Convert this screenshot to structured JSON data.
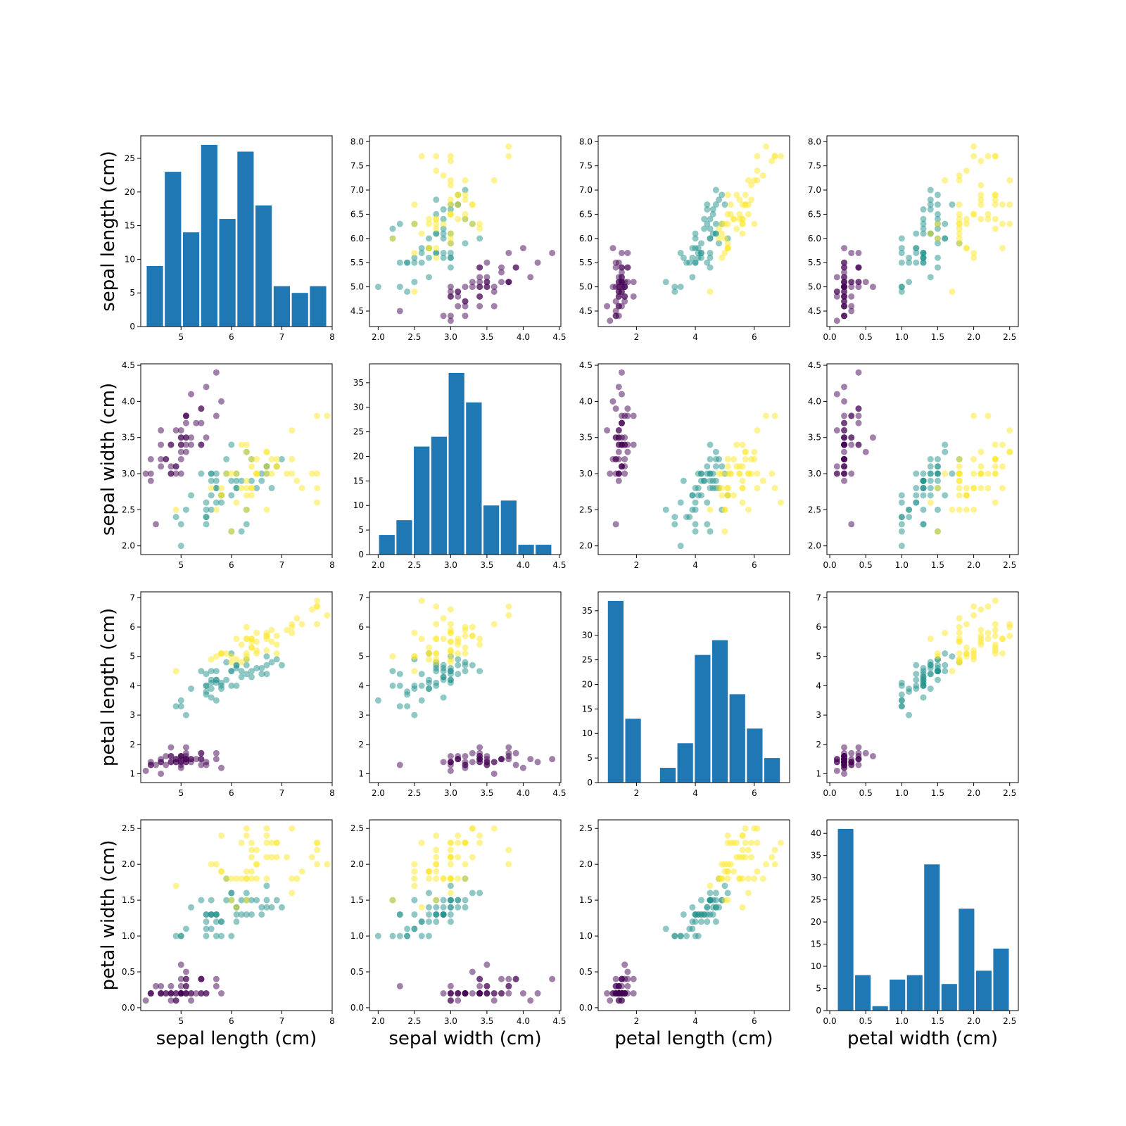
{
  "features": [
    "sepal length (cm)",
    "sepal width (cm)",
    "petal length (cm)",
    "petal width (cm)"
  ],
  "class_colors": [
    "#440154",
    "#21918c",
    "#fde725"
  ],
  "chart_data": {
    "type": "scatter",
    "grid": false,
    "axes": [
      {
        "xlim": [
          4.2,
          8.0
        ],
        "xticks": [
          5,
          6,
          7,
          8
        ]
      },
      {
        "xlim": [
          1.88,
          4.52
        ],
        "xticks": [
          2.0,
          2.5,
          3.0,
          3.5,
          4.0,
          4.5
        ]
      },
      {
        "xlim": [
          0.7,
          7.2
        ],
        "xticks": [
          2,
          4,
          6
        ]
      },
      {
        "xlim": [
          -0.04,
          2.62
        ],
        "xticks": [
          0.0,
          0.5,
          1.0,
          1.5,
          2.0,
          2.5
        ]
      }
    ],
    "scatter_ylims": [
      [
        4.18,
        8.12
      ],
      [
        1.88,
        4.52
      ],
      [
        0.7,
        7.2
      ],
      [
        -0.04,
        2.62
      ]
    ],
    "scatter_yticks": [
      [
        4.5,
        5.0,
        5.5,
        6.0,
        6.5,
        7.0,
        7.5,
        8.0
      ],
      [
        2.0,
        2.5,
        3.0,
        3.5,
        4.0,
        4.5
      ],
      [
        1,
        2,
        3,
        4,
        5,
        6,
        7
      ],
      [
        0.0,
        0.5,
        1.0,
        1.5,
        2.0,
        2.5
      ]
    ],
    "histograms": [
      {
        "bin_min": 4.3,
        "bin_max": 7.9,
        "counts": [
          9,
          23,
          14,
          27,
          16,
          26,
          18,
          6,
          5,
          6
        ],
        "ylim": [
          0,
          28.35
        ],
        "yticks": [
          0,
          5,
          10,
          15,
          20,
          25
        ]
      },
      {
        "bin_min": 2.0,
        "bin_max": 4.4,
        "counts": [
          4,
          7,
          22,
          24,
          37,
          31,
          10,
          11,
          2,
          2
        ],
        "ylim": [
          0,
          38.85
        ],
        "yticks": [
          0,
          5,
          10,
          15,
          20,
          25,
          30,
          35
        ]
      },
      {
        "bin_min": 1.0,
        "bin_max": 6.9,
        "counts": [
          37,
          13,
          0,
          3,
          8,
          26,
          29,
          18,
          11,
          5
        ],
        "ylim": [
          0,
          38.85
        ],
        "yticks": [
          0,
          5,
          10,
          15,
          20,
          25,
          30,
          35
        ]
      },
      {
        "bin_min": 0.1,
        "bin_max": 2.5,
        "counts": [
          41,
          8,
          1,
          7,
          8,
          33,
          6,
          23,
          9,
          14
        ],
        "ylim": [
          0,
          43.05
        ],
        "yticks": [
          0,
          5,
          10,
          15,
          20,
          25,
          30,
          35,
          40
        ]
      }
    ],
    "class": [
      0,
      0,
      0,
      0,
      0,
      0,
      0,
      0,
      0,
      0,
      0,
      0,
      0,
      0,
      0,
      0,
      0,
      0,
      0,
      0,
      0,
      0,
      0,
      0,
      0,
      0,
      0,
      0,
      0,
      0,
      0,
      0,
      0,
      0,
      0,
      0,
      0,
      0,
      0,
      0,
      0,
      0,
      0,
      0,
      0,
      0,
      0,
      0,
      0,
      0,
      1,
      1,
      1,
      1,
      1,
      1,
      1,
      1,
      1,
      1,
      1,
      1,
      1,
      1,
      1,
      1,
      1,
      1,
      1,
      1,
      1,
      1,
      1,
      1,
      1,
      1,
      1,
      1,
      1,
      1,
      1,
      1,
      1,
      1,
      1,
      1,
      1,
      1,
      1,
      1,
      1,
      1,
      1,
      1,
      1,
      1,
      1,
      1,
      1,
      1,
      2,
      2,
      2,
      2,
      2,
      2,
      2,
      2,
      2,
      2,
      2,
      2,
      2,
      2,
      2,
      2,
      2,
      2,
      2,
      2,
      2,
      2,
      2,
      2,
      2,
      2,
      2,
      2,
      2,
      2,
      2,
      2,
      2,
      2,
      2,
      2,
      2,
      2,
      2,
      2,
      2,
      2,
      2,
      2,
      2,
      2,
      2,
      2,
      2,
      2
    ],
    "sepal_length": [
      5.1,
      4.9,
      4.7,
      4.6,
      5.0,
      5.4,
      4.6,
      5.0,
      4.4,
      4.9,
      5.4,
      4.8,
      4.8,
      4.3,
      5.8,
      5.7,
      5.4,
      5.1,
      5.7,
      5.1,
      5.4,
      5.1,
      4.6,
      5.1,
      4.8,
      5.0,
      5.0,
      5.2,
      5.2,
      4.7,
      4.8,
      5.4,
      5.2,
      5.5,
      4.9,
      5.0,
      5.5,
      4.9,
      4.4,
      5.1,
      5.0,
      4.5,
      4.4,
      5.0,
      5.1,
      4.8,
      5.1,
      4.6,
      5.3,
      5.0,
      7.0,
      6.4,
      6.9,
      5.5,
      6.5,
      5.7,
      6.3,
      4.9,
      6.6,
      5.2,
      5.0,
      5.9,
      6.0,
      6.1,
      5.6,
      6.7,
      5.6,
      5.8,
      6.2,
      5.6,
      5.9,
      6.1,
      6.3,
      6.1,
      6.4,
      6.6,
      6.8,
      6.7,
      6.0,
      5.7,
      5.5,
      5.5,
      5.8,
      6.0,
      5.4,
      6.0,
      6.7,
      6.3,
      5.6,
      5.5,
      5.5,
      6.1,
      5.8,
      5.0,
      5.6,
      5.7,
      5.7,
      6.2,
      5.1,
      5.7,
      6.3,
      5.8,
      7.1,
      6.3,
      6.5,
      7.6,
      4.9,
      7.3,
      6.7,
      7.2,
      6.5,
      6.4,
      6.8,
      5.7,
      5.8,
      6.4,
      6.5,
      7.7,
      7.7,
      6.0,
      6.9,
      5.6,
      7.7,
      6.3,
      6.7,
      7.2,
      6.2,
      6.1,
      6.4,
      7.2,
      7.4,
      7.9,
      6.4,
      6.3,
      6.1,
      7.7,
      6.3,
      6.4,
      6.0,
      6.9,
      6.7,
      6.9,
      5.8,
      6.8,
      6.7,
      6.7,
      6.3,
      6.5,
      6.2,
      5.9
    ],
    "sepal_width": [
      3.5,
      3.0,
      3.2,
      3.1,
      3.6,
      3.9,
      3.4,
      3.4,
      2.9,
      3.1,
      3.7,
      3.4,
      3.0,
      3.0,
      4.0,
      4.4,
      3.9,
      3.5,
      3.8,
      3.8,
      3.4,
      3.7,
      3.6,
      3.3,
      3.4,
      3.0,
      3.4,
      3.5,
      3.4,
      3.2,
      3.1,
      3.4,
      4.1,
      4.2,
      3.1,
      3.2,
      3.5,
      3.6,
      3.0,
      3.4,
      3.5,
      2.3,
      3.2,
      3.5,
      3.8,
      3.0,
      3.8,
      3.2,
      3.7,
      3.3,
      3.2,
      3.2,
      3.1,
      2.3,
      2.8,
      2.8,
      3.3,
      2.4,
      2.9,
      2.7,
      2.0,
      3.0,
      2.2,
      2.9,
      2.9,
      3.1,
      3.0,
      2.7,
      2.2,
      2.5,
      3.2,
      2.8,
      2.5,
      2.8,
      2.9,
      3.0,
      2.8,
      3.0,
      2.9,
      2.6,
      2.4,
      2.4,
      2.7,
      2.7,
      3.0,
      3.4,
      3.1,
      2.3,
      3.0,
      2.5,
      2.6,
      3.0,
      2.6,
      2.3,
      2.7,
      3.0,
      2.9,
      2.9,
      2.5,
      2.8,
      3.3,
      2.7,
      3.0,
      2.9,
      3.0,
      3.0,
      2.5,
      2.9,
      2.5,
      3.6,
      3.2,
      2.7,
      3.0,
      2.5,
      2.8,
      3.2,
      3.0,
      3.8,
      2.6,
      2.2,
      3.2,
      2.8,
      2.8,
      2.7,
      3.3,
      3.2,
      2.8,
      3.0,
      2.8,
      3.0,
      2.8,
      3.8,
      2.8,
      2.8,
      2.6,
      3.0,
      3.4,
      3.1,
      3.0,
      3.1,
      3.1,
      3.1,
      2.7,
      3.2,
      3.3,
      3.0,
      2.5,
      3.0,
      3.4,
      3.0
    ],
    "petal_length": [
      1.4,
      1.4,
      1.3,
      1.5,
      1.4,
      1.7,
      1.4,
      1.5,
      1.4,
      1.5,
      1.5,
      1.6,
      1.4,
      1.1,
      1.2,
      1.5,
      1.3,
      1.4,
      1.7,
      1.5,
      1.7,
      1.5,
      1.0,
      1.7,
      1.9,
      1.6,
      1.6,
      1.5,
      1.4,
      1.6,
      1.6,
      1.5,
      1.5,
      1.4,
      1.5,
      1.2,
      1.3,
      1.4,
      1.3,
      1.5,
      1.3,
      1.3,
      1.3,
      1.6,
      1.9,
      1.4,
      1.6,
      1.4,
      1.5,
      1.4,
      4.7,
      4.5,
      4.9,
      4.0,
      4.6,
      4.5,
      4.7,
      3.3,
      4.6,
      3.9,
      3.5,
      4.2,
      4.0,
      4.7,
      3.6,
      4.4,
      4.5,
      4.1,
      4.5,
      3.9,
      4.8,
      4.0,
      4.9,
      4.7,
      4.3,
      4.4,
      4.8,
      5.0,
      4.5,
      3.5,
      3.8,
      3.7,
      3.9,
      5.1,
      4.5,
      4.5,
      4.7,
      4.4,
      4.1,
      4.0,
      4.4,
      4.6,
      4.0,
      3.3,
      4.2,
      4.2,
      4.2,
      4.3,
      3.0,
      4.1,
      6.0,
      5.1,
      5.9,
      5.6,
      5.8,
      6.6,
      4.5,
      6.3,
      5.8,
      6.1,
      5.1,
      5.3,
      5.5,
      5.0,
      5.1,
      5.3,
      5.5,
      6.7,
      6.9,
      5.0,
      5.7,
      4.9,
      6.7,
      4.9,
      5.7,
      6.0,
      4.8,
      4.9,
      5.6,
      5.8,
      6.1,
      6.4,
      5.6,
      5.1,
      5.6,
      6.1,
      5.6,
      5.5,
      4.8,
      5.4,
      5.6,
      5.1,
      5.1,
      5.9,
      5.7,
      5.2,
      5.0,
      5.2,
      5.4,
      5.1
    ],
    "petal_width": [
      0.2,
      0.2,
      0.2,
      0.2,
      0.2,
      0.4,
      0.3,
      0.2,
      0.2,
      0.1,
      0.2,
      0.2,
      0.1,
      0.1,
      0.2,
      0.4,
      0.4,
      0.3,
      0.3,
      0.3,
      0.2,
      0.4,
      0.2,
      0.5,
      0.2,
      0.2,
      0.4,
      0.2,
      0.2,
      0.2,
      0.2,
      0.4,
      0.1,
      0.2,
      0.2,
      0.2,
      0.2,
      0.1,
      0.2,
      0.2,
      0.3,
      0.3,
      0.2,
      0.6,
      0.4,
      0.3,
      0.2,
      0.2,
      0.2,
      0.2,
      1.4,
      1.5,
      1.5,
      1.3,
      1.5,
      1.3,
      1.6,
      1.0,
      1.3,
      1.4,
      1.0,
      1.5,
      1.0,
      1.4,
      1.3,
      1.4,
      1.5,
      1.0,
      1.5,
      1.1,
      1.8,
      1.3,
      1.5,
      1.2,
      1.3,
      1.4,
      1.4,
      1.7,
      1.5,
      1.0,
      1.1,
      1.0,
      1.2,
      1.6,
      1.5,
      1.6,
      1.5,
      1.3,
      1.3,
      1.3,
      1.2,
      1.4,
      1.2,
      1.0,
      1.3,
      1.2,
      1.3,
      1.3,
      1.1,
      1.3,
      2.5,
      1.9,
      2.1,
      1.8,
      2.2,
      2.1,
      1.7,
      1.8,
      1.8,
      2.5,
      2.0,
      1.9,
      2.1,
      2.0,
      2.4,
      2.3,
      1.8,
      2.2,
      2.3,
      1.5,
      2.3,
      2.0,
      2.0,
      1.8,
      2.1,
      1.8,
      1.8,
      1.8,
      2.1,
      1.6,
      1.9,
      2.0,
      2.2,
      1.5,
      1.4,
      2.3,
      2.4,
      1.8,
      1.8,
      2.1,
      2.4,
      2.3,
      1.9,
      2.3,
      2.5,
      2.3,
      1.9,
      2.0,
      2.3,
      1.8
    ]
  }
}
